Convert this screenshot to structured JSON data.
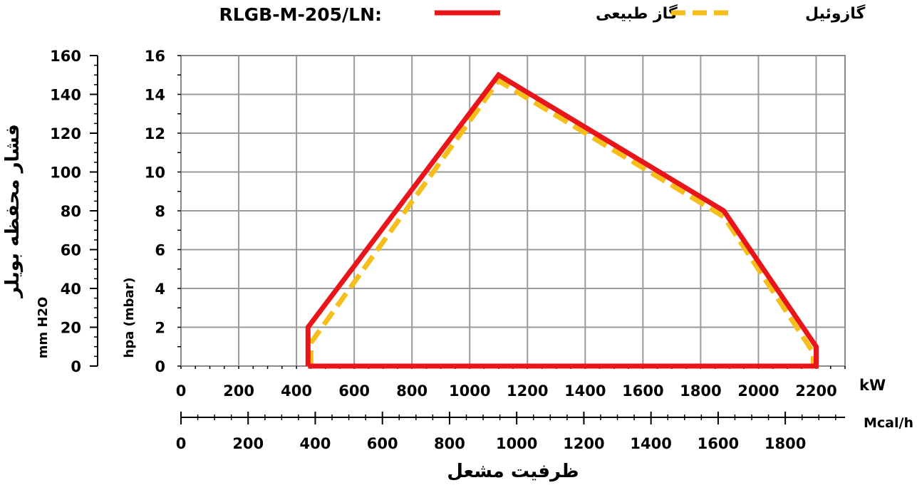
{
  "header": {
    "model": "RLGB-M-205/LN:",
    "legend_gas": "گاز طبیعی",
    "legend_oil": "گازوئیل"
  },
  "axes": {
    "left_title": "فشار محفظه بویلر",
    "left_unit": "mm H2O",
    "inner_unit": "hpa (mbar)",
    "x_unit_kw": "kW",
    "x_unit_mcal": "Mcal/h",
    "x_title": "ظرفیت مشعل"
  },
  "colors": {
    "gas": "#e8161b",
    "oil": "#f5be1b",
    "grid": "#9a9a9a"
  },
  "chart_data": {
    "type": "line",
    "title": "RLGB-M-205/LN:",
    "xlabel": "ظرفیت مشعل",
    "x_unit": "kW",
    "xlim": [
      0,
      2300
    ],
    "ylabel": "hpa (mbar)",
    "ylim": [
      0,
      16
    ],
    "grid": true,
    "legend_position": "top",
    "x_ticks": [
      0,
      200,
      400,
      600,
      800,
      1000,
      1200,
      1400,
      1600,
      1800,
      2000,
      2200
    ],
    "y_ticks": [
      0,
      2,
      4,
      6,
      8,
      10,
      12,
      14,
      16
    ],
    "secondary_y": {
      "label": "فشار محفظه بویلر",
      "unit": "mm H2O",
      "ticks": [
        0,
        20,
        40,
        60,
        80,
        100,
        120,
        140,
        160
      ],
      "ylim": [
        0,
        160
      ]
    },
    "secondary_x": {
      "unit": "Mcal/h",
      "ticks": [
        0,
        200,
        400,
        600,
        800,
        1000,
        1200,
        1400,
        1600,
        1800
      ],
      "xlim": [
        0,
        1978
      ]
    },
    "series": [
      {
        "name": "گاز طبیعی",
        "color": "#e8161b",
        "style": "solid",
        "x": [
          440,
          440,
          1100,
          1880,
          2200,
          2200,
          440
        ],
        "y": [
          0,
          2,
          15,
          8,
          1,
          0,
          0
        ]
      },
      {
        "name": "گازوئیل",
        "color": "#f5be1b",
        "style": "dashed",
        "x": [
          450,
          450,
          1100,
          1880,
          2190,
          2190,
          450
        ],
        "y": [
          0,
          1.2,
          14.7,
          7.7,
          0.7,
          0,
          0
        ]
      }
    ]
  }
}
